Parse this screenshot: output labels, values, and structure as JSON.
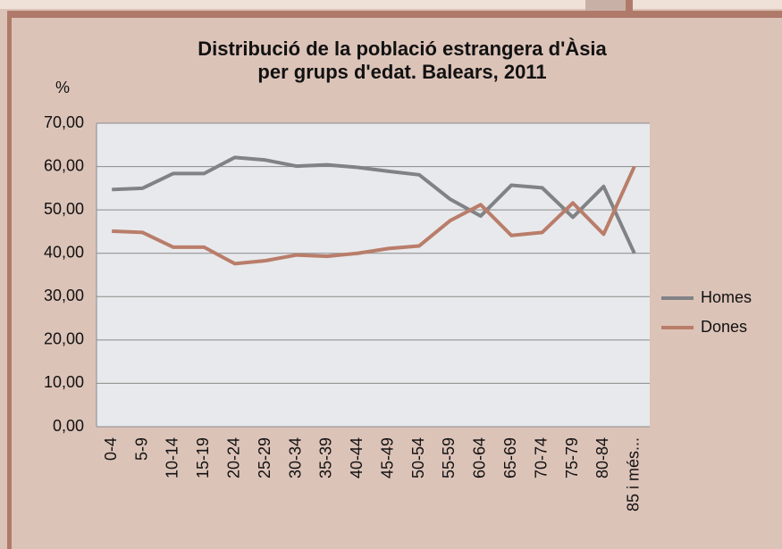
{
  "chart_data": {
    "type": "line",
    "title": [
      "Distribució de la població estrangera d'Àsia",
      "per grups d'edat. Balears, 2011"
    ],
    "y_label": "%",
    "categories": [
      "0-4",
      "5-9",
      "10-14",
      "15-19",
      "20-24",
      "25-29",
      "30-34",
      "35-39",
      "40-44",
      "45-49",
      "50-54",
      "55-59",
      "60-64",
      "65-69",
      "70-74",
      "75-79",
      "80-84",
      "85 i més..."
    ],
    "series": [
      {
        "name": "Homes",
        "color": "#808285",
        "values": [
          54.7,
          55.0,
          58.4,
          58.4,
          62.1,
          61.5,
          60.1,
          60.4,
          59.8,
          58.9,
          58.1,
          52.5,
          48.6,
          55.7,
          55.1,
          48.3,
          55.4,
          40.0
        ]
      },
      {
        "name": "Dones",
        "color": "#b97d6a",
        "values": [
          45.1,
          44.8,
          41.4,
          41.4,
          37.6,
          38.3,
          39.6,
          39.3,
          40.0,
          41.1,
          41.7,
          47.5,
          51.2,
          44.1,
          44.8,
          51.6,
          44.4,
          60.0
        ]
      }
    ],
    "ylim": [
      0,
      70
    ],
    "yticks": [
      {
        "value": 0,
        "label": "0,00"
      },
      {
        "value": 10,
        "label": "10,00"
      },
      {
        "value": 20,
        "label": "20,00"
      },
      {
        "value": 30,
        "label": "30,00"
      },
      {
        "value": 40,
        "label": "40,00"
      },
      {
        "value": 50,
        "label": "50,00"
      },
      {
        "value": 60,
        "label": "60,00"
      },
      {
        "value": 70,
        "label": "70,00"
      }
    ],
    "grid": true,
    "legend": "right"
  }
}
